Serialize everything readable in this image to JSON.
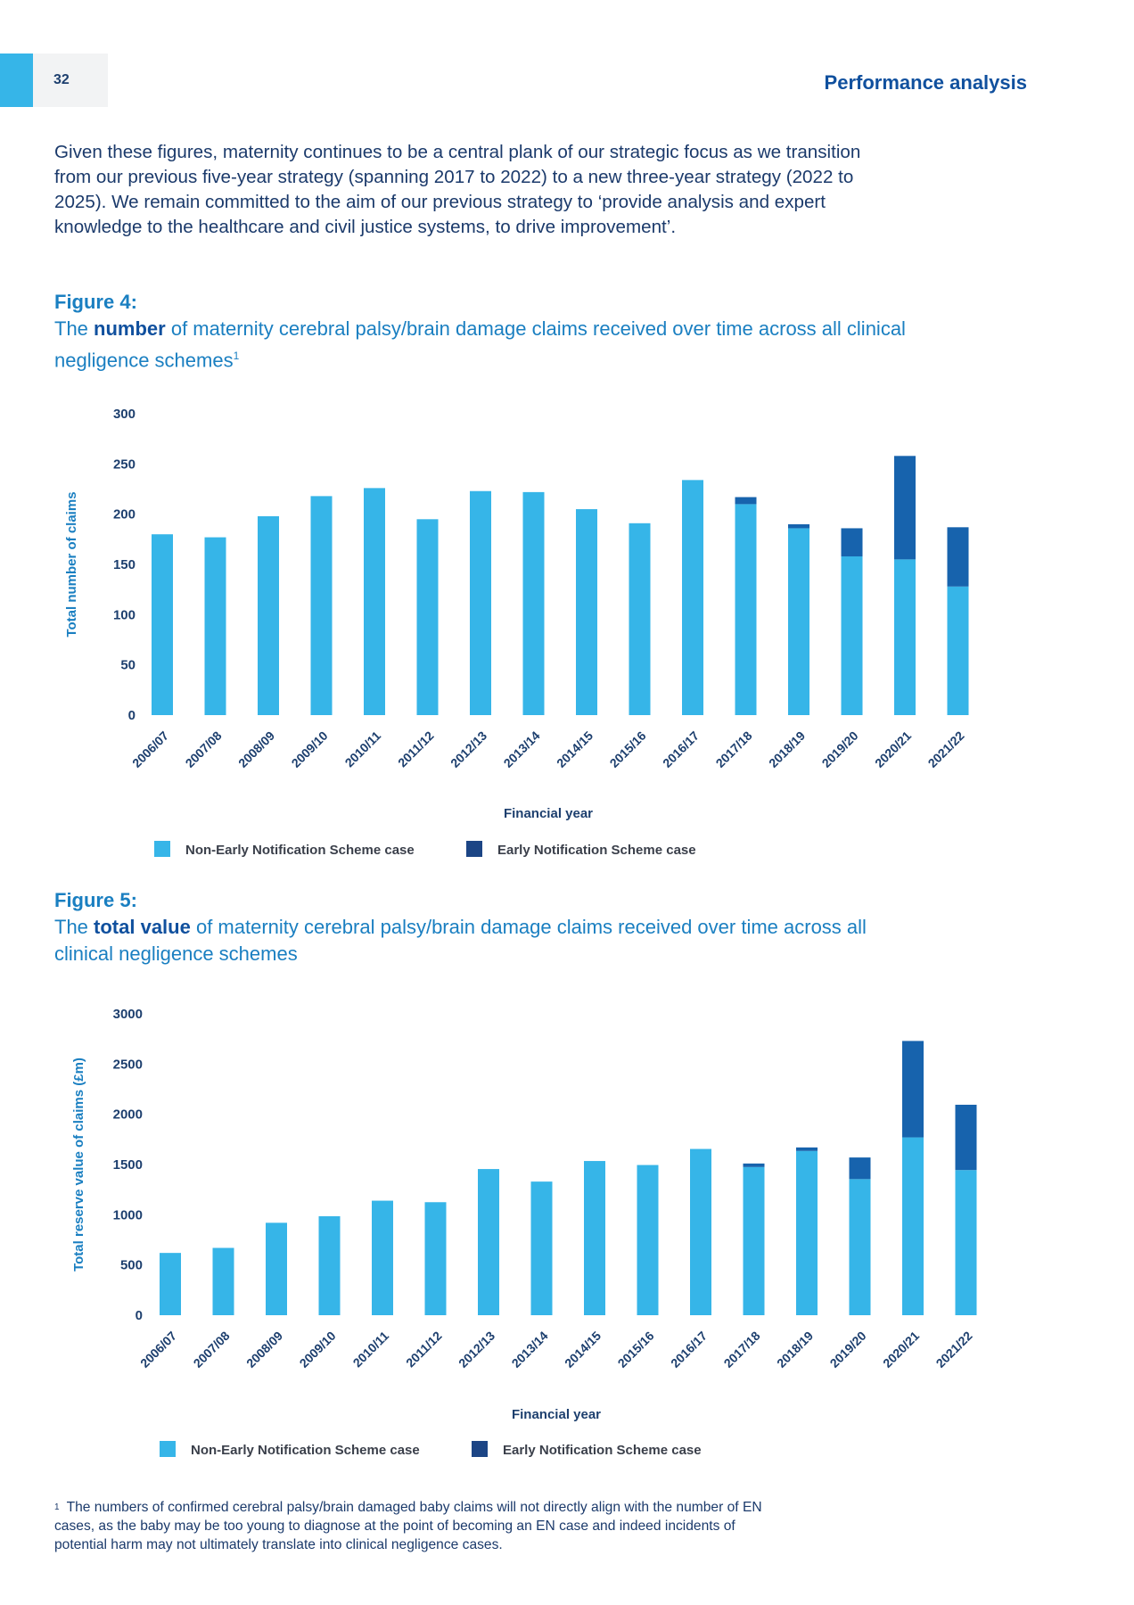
{
  "header": {
    "page_number": "32",
    "section_title": "Performance analysis"
  },
  "intro_paragraph": "Given these figures, maternity continues to be a central plank of our strategic focus as we transition from our previous five-year strategy (spanning 2017 to 2022) to a new three-year strategy (2022 to 2025). We remain committed to the aim of our previous strategy to ‘provide analysis and expert knowledge to the healthcare and civil justice systems, to drive improvement’.",
  "figure4": {
    "label": "Figure 4:",
    "caption_pre": "The ",
    "caption_bold": "number",
    "caption_post": " of maternity cerebral palsy/brain damage claims received over time across all clinical negligence schemes",
    "footnote_marker": "1"
  },
  "figure5": {
    "label": "Figure 5:",
    "caption_pre": "The ",
    "caption_bold": "total value",
    "caption_post": " of maternity cerebral palsy/brain damage claims received over time across all clinical negligence schemes"
  },
  "footnote": {
    "marker": "1",
    "text": "The numbers of confirmed cerebral palsy/brain damaged baby claims will not directly align with the number of EN cases, as the baby may be too young to diagnose at the point of becoming an EN case and indeed incidents of potential harm may not ultimately translate into clinical negligence cases."
  },
  "colors": {
    "non_en": "#36b5e8",
    "en": "#1763ad",
    "en_legend": "#1c4585",
    "axis_label": "#1a7fc1",
    "text": "#1d3f6e"
  },
  "chart_data": [
    {
      "type": "bar",
      "stacked": true,
      "title": "",
      "categories": [
        "2006/07",
        "2007/08",
        "2008/09",
        "2009/10",
        "2010/11",
        "2011/12",
        "2012/13",
        "2013/14",
        "2014/15",
        "2015/16",
        "2016/17",
        "2017/18",
        "2018/19",
        "2019/20",
        "2020/21",
        "2021/22"
      ],
      "series": [
        {
          "name": "Non-Early Notification Scheme case",
          "values": [
            180,
            177,
            198,
            218,
            226,
            195,
            223,
            222,
            205,
            191,
            234,
            210,
            186,
            158,
            155,
            128
          ]
        },
        {
          "name": "Early Notification Scheme case",
          "values": [
            0,
            0,
            0,
            0,
            0,
            0,
            0,
            0,
            0,
            0,
            0,
            7,
            4,
            28,
            103,
            59
          ]
        }
      ],
      "xlabel": "Financial year",
      "ylabel": "Total number of claims",
      "ylim": [
        0,
        300
      ],
      "yticks": [
        "0",
        "50",
        "100",
        "150",
        "200",
        "250",
        "300"
      ],
      "grid": false,
      "legend": "bottom"
    },
    {
      "type": "bar",
      "stacked": true,
      "title": "",
      "categories": [
        "2006/07",
        "2007/08",
        "2008/09",
        "2009/10",
        "2010/11",
        "2011/12",
        "2012/13",
        "2013/14",
        "2014/15",
        "2015/16",
        "2016/17",
        "2017/18",
        "2018/19",
        "2019/20",
        "2020/21",
        "2021/22"
      ],
      "series": [
        {
          "name": "Non-Early Notification Scheme case",
          "values": [
            620,
            670,
            920,
            985,
            1140,
            1125,
            1455,
            1330,
            1535,
            1495,
            1655,
            1475,
            1635,
            1355,
            1770,
            1445
          ]
        },
        {
          "name": "Early Notification Scheme case",
          "values": [
            0,
            0,
            0,
            0,
            0,
            0,
            0,
            0,
            0,
            0,
            0,
            35,
            35,
            215,
            960,
            650
          ]
        }
      ],
      "xlabel": "Financial year",
      "ylabel": "Total reserve value of claims (£m)",
      "ylim": [
        0,
        3000
      ],
      "yticks": [
        "0",
        "500",
        "1000",
        "1500",
        "2000",
        "2500",
        "3000"
      ],
      "grid": false,
      "legend": "bottom"
    }
  ]
}
